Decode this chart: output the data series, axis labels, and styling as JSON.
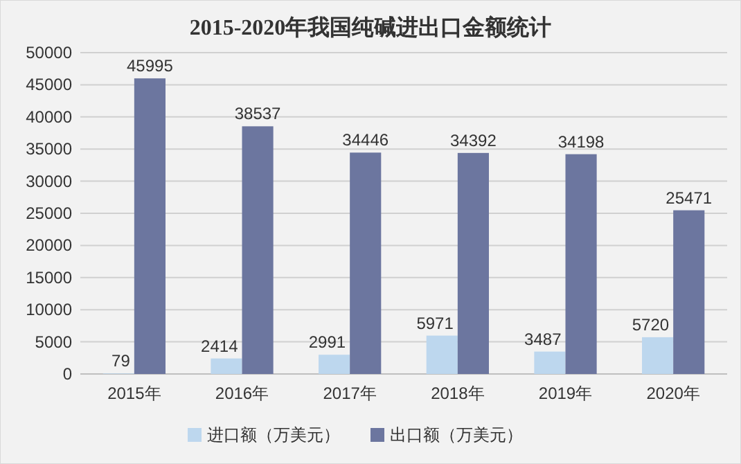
{
  "chart_data": {
    "type": "bar",
    "title": "2015-2020年我国纯碱进出口金额统计",
    "categories": [
      "2015年",
      "2016年",
      "2017年",
      "2018年",
      "2019年",
      "2020年"
    ],
    "series": [
      {
        "name": "进口额（万美元）",
        "color": "#bdd7ee",
        "values": [
          79,
          2414,
          2991,
          5971,
          3487,
          5720
        ]
      },
      {
        "name": "出口额（万美元）",
        "color": "#6c769f",
        "values": [
          45995,
          38537,
          34446,
          34392,
          34198,
          25471
        ]
      }
    ],
    "ylim": [
      0,
      50000
    ],
    "yticks": [
      0,
      5000,
      10000,
      15000,
      20000,
      25000,
      30000,
      35000,
      40000,
      45000,
      50000
    ],
    "grid": "y",
    "legend": "bottom",
    "data_labels": true
  }
}
